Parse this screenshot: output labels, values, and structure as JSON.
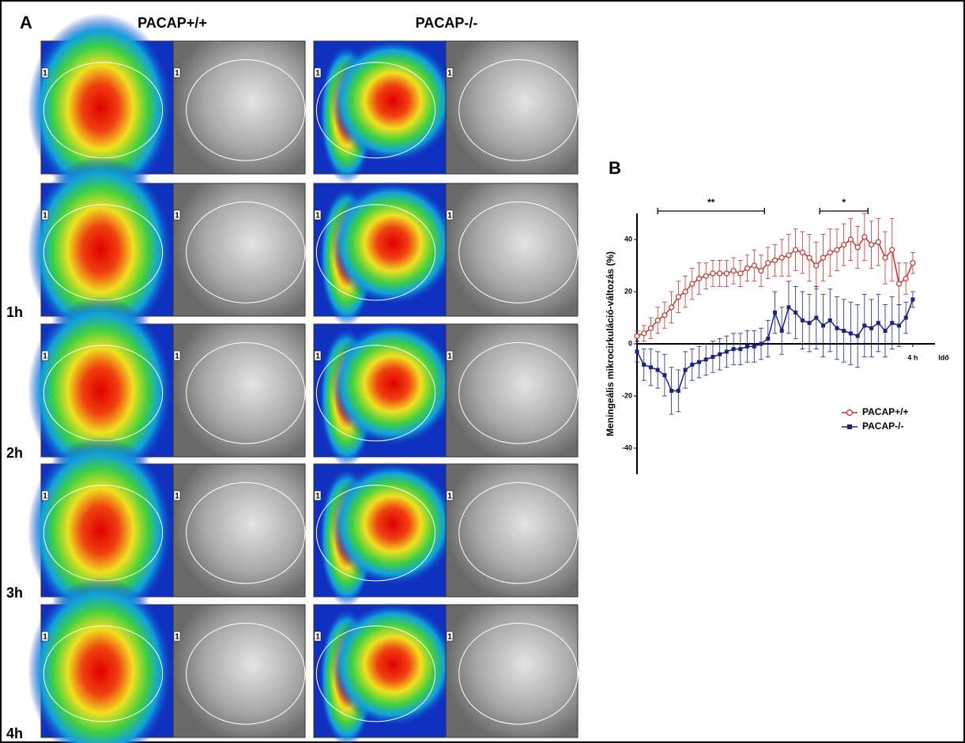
{
  "panel_a": {
    "label": "A",
    "columns": [
      "PACAP+/+",
      "PACAP-/-"
    ],
    "row_labels": [
      "1h",
      "2h",
      "3h",
      "4h"
    ],
    "roi_label": "1"
  },
  "chart_data": {
    "type": "line",
    "panel_label": "B",
    "y_label": "Meningeális mikrocirkuláció-változás (%)",
    "x_label": "Idő",
    "xlim": [
      0,
      4.15
    ],
    "xticks": [
      {
        "value": 4,
        "label": "4 h"
      }
    ],
    "ylim": [
      -50,
      50
    ],
    "yticks": [
      -40,
      -20,
      0,
      20,
      40
    ],
    "x": [
      0,
      0.1,
      0.2,
      0.3,
      0.4,
      0.5,
      0.6,
      0.7,
      0.8,
      0.9,
      1,
      1.1,
      1.2,
      1.3,
      1.4,
      1.5,
      1.6,
      1.7,
      1.8,
      1.9,
      2,
      2.1,
      2.2,
      2.3,
      2.4,
      2.5,
      2.6,
      2.7,
      2.8,
      2.9,
      3,
      3.1,
      3.2,
      3.3,
      3.4,
      3.5,
      3.6,
      3.7,
      3.8,
      3.9,
      4
    ],
    "series": [
      {
        "name": "PACAP+/+",
        "color": "#c0302a",
        "marker": "circle",
        "values": [
          3,
          4,
          6,
          9,
          11,
          14,
          18,
          20,
          23,
          25,
          26,
          27,
          27,
          27,
          28,
          27,
          29,
          30,
          28,
          31,
          32,
          33,
          34,
          36,
          35,
          33,
          30,
          33,
          35,
          36,
          38,
          40,
          37,
          41,
          38,
          39,
          33,
          36,
          23,
          25,
          31
        ],
        "errors": [
          2,
          3,
          4,
          5,
          5,
          6,
          6,
          6,
          6,
          6,
          5,
          5,
          5,
          5,
          5,
          5,
          5,
          6,
          6,
          6,
          6,
          7,
          8,
          8,
          8,
          9,
          9,
          9,
          9,
          8,
          8,
          8,
          8,
          9,
          9,
          9,
          10,
          12,
          8,
          6,
          4
        ]
      },
      {
        "name": "PACAP-/-",
        "color": "#1a237e",
        "marker": "square",
        "values": [
          -3,
          -8,
          -9,
          -10,
          -12,
          -18,
          -18,
          -10,
          -8,
          -7,
          -6,
          -5,
          -4,
          -3,
          -2,
          -2,
          -1,
          -1,
          0,
          2,
          12,
          5,
          14,
          12,
          9,
          8,
          10,
          7,
          9,
          6,
          5,
          4,
          3,
          7,
          6,
          8,
          5,
          8,
          7,
          10,
          17
        ],
        "errors": [
          4,
          6,
          7,
          7,
          8,
          9,
          8,
          7,
          6,
          6,
          6,
          6,
          6,
          6,
          6,
          6,
          6,
          6,
          6,
          7,
          8,
          9,
          10,
          10,
          11,
          11,
          12,
          12,
          12,
          12,
          12,
          12,
          12,
          12,
          11,
          11,
          10,
          10,
          8,
          6,
          3
        ]
      }
    ],
    "annotations": [
      {
        "text": "**",
        "x": [
          0.3,
          1.85
        ]
      },
      {
        "text": "*",
        "x": [
          2.65,
          3.35
        ]
      }
    ],
    "legend": "lower right"
  }
}
